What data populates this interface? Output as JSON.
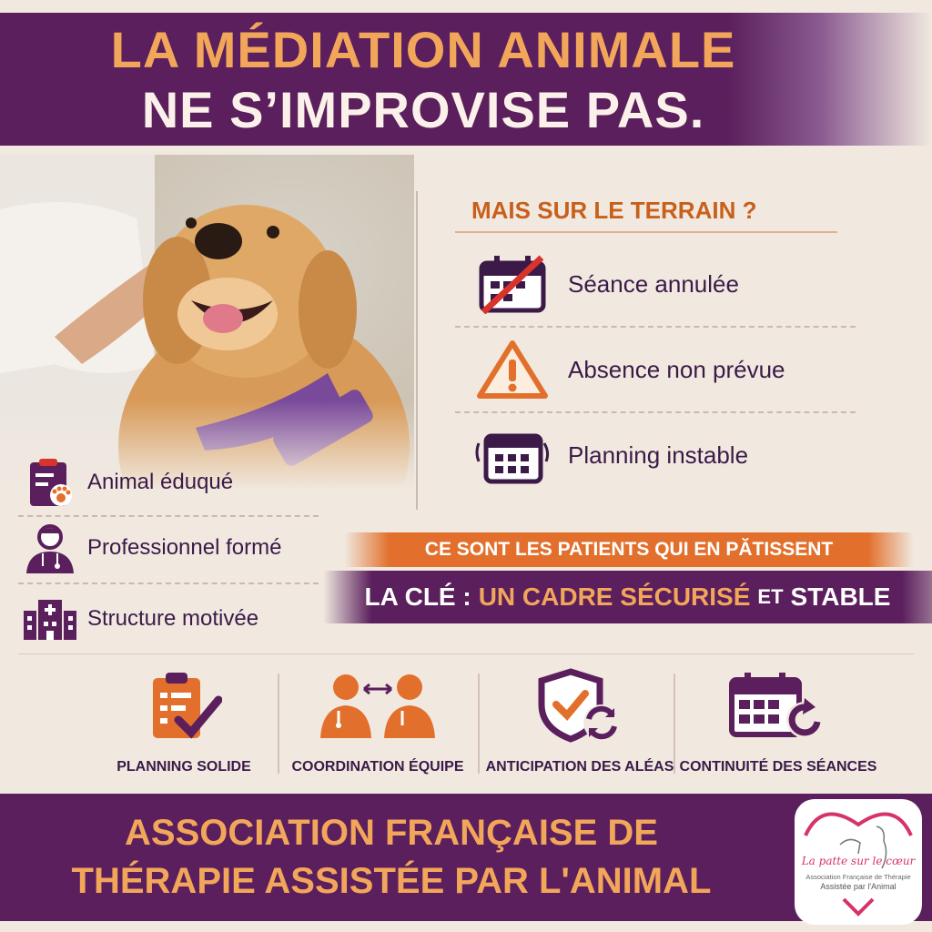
{
  "header": {
    "line1": "LA MÉDIATION ANIMALE",
    "line2": "NE S’IMPROVISE PAS."
  },
  "terrain": {
    "title": "MAIS SUR LE TERRAIN ?",
    "items": [
      {
        "label": "Séance annulée",
        "icon": "calendar-cancelled-icon"
      },
      {
        "label": "Absence non prévue",
        "icon": "warning-icon"
      },
      {
        "label": "Planning instable",
        "icon": "calendar-shaking-icon"
      }
    ]
  },
  "requirements": [
    {
      "label": "Animal éduqué",
      "icon": "clipboard-paw-icon"
    },
    {
      "label": "Professionnel formé",
      "icon": "doctor-icon"
    },
    {
      "label": "Structure motivée",
      "icon": "hospital-icon"
    }
  ],
  "banner": {
    "patients": "CE SONT LES PATIENTS QUI EN PĂTISSENT",
    "key_prefix": "LA CLÉ :",
    "key_highlight": "UN CADRE SÉCURISÉ",
    "key_and": "ET",
    "key_end": "STABLE"
  },
  "pillars": [
    {
      "label": "PLANNING SOLIDE",
      "icon": "clipboard-check-icon"
    },
    {
      "label": "COORDINATION ÉQUIPE",
      "icon": "team-exchange-icon"
    },
    {
      "label": "ANTICIPATION DES ALÉAS",
      "icon": "shield-refresh-icon"
    },
    {
      "label": "CONTINUITÉ DES SÉANCES",
      "icon": "calendar-refresh-icon"
    }
  ],
  "footer": {
    "line1": "ASSOCIATION FRANÇAISE DE",
    "line2": "THÉRAPIE ASSISTÉE PAR L'ANIMAL"
  },
  "logo": {
    "script": "La patte sur le cœur",
    "line1": "Association Française de Thérapie",
    "line2": "Assistée par l'Animal"
  },
  "colors": {
    "purple": "#5a1f5c",
    "orange": "#e2702c",
    "title_orange": "#f2a65a",
    "text": "#3b1a48",
    "background": "#f1e9e0"
  }
}
